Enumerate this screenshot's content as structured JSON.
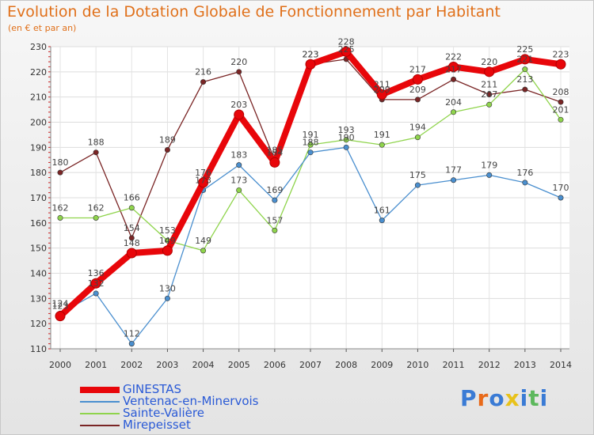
{
  "header": {
    "title": "Evolution de la Dotation Globale de Fonctionnement par Habitant",
    "subtitle": "(en € et par an)"
  },
  "brand": {
    "logo_text": "Proxiti"
  },
  "chart_data": {
    "type": "line",
    "title": "Evolution de la Dotation Globale de Fonctionnement par Habitant",
    "subtitle": "(en € et par an)",
    "xlabel": "",
    "ylabel": "",
    "ylim": [
      110,
      230
    ],
    "yticks": [
      110,
      120,
      130,
      140,
      150,
      160,
      170,
      180,
      190,
      200,
      210,
      220,
      230
    ],
    "categories": [
      "2000",
      "2001",
      "2002",
      "2003",
      "2004",
      "2005",
      "2006",
      "2007",
      "2008",
      "2009",
      "2010",
      "2011",
      "2012",
      "2013",
      "2014"
    ],
    "legend_position": "bottom-left",
    "series": [
      {
        "name": "GINESTAS",
        "color": "#e8060a",
        "values": [
          123,
          136,
          148,
          149,
          176,
          203,
          184,
          223,
          228,
          211,
          217,
          222,
          220,
          225,
          223
        ]
      },
      {
        "name": "Ventenac-en-Minervois",
        "color": "#4a8fcf",
        "values": [
          124,
          132,
          112,
          130,
          173,
          183,
          169,
          188,
          190,
          161,
          175,
          177,
          179,
          176,
          170
        ]
      },
      {
        "name": "Sainte-Valière",
        "color": "#8fd44c",
        "values": [
          162,
          162,
          166,
          153,
          149,
          173,
          157,
          191,
          193,
          191,
          194,
          204,
          207,
          221,
          201
        ]
      },
      {
        "name": "Mirepeisset",
        "color": "#7a2525",
        "values": [
          180,
          188,
          154,
          189,
          216,
          220,
          185,
          223,
          225,
          209,
          209,
          217,
          211,
          213,
          208
        ]
      }
    ]
  }
}
